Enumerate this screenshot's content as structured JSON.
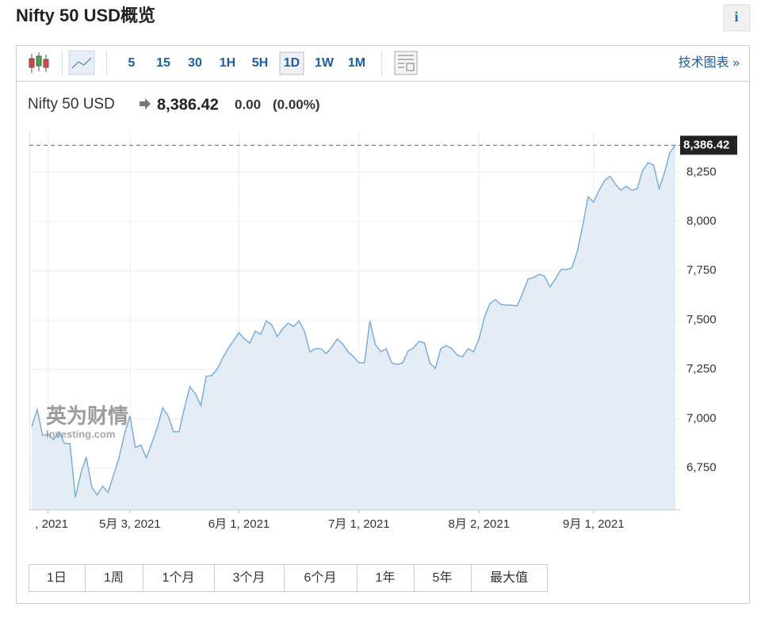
{
  "header": {
    "title": "Nifty 50 USD概览",
    "info": "i"
  },
  "toolbar": {
    "intervals": [
      "5",
      "15",
      "30",
      "1H",
      "5H",
      "1D",
      "1W",
      "1M"
    ],
    "selected": "1D",
    "link": "技术图表 »"
  },
  "quote": {
    "name": "Nifty 50 USD",
    "price": "8,386.42",
    "change": "0.00",
    "change_pct": "(0.00%)"
  },
  "watermark": {
    "brand": "英为财情",
    "site": "Investing.com"
  },
  "chart_data": {
    "type": "area",
    "color": "#7aaedb",
    "fill": "#e4edf6",
    "grid": true,
    "categories": [
      null,
      null,
      null,
      ", 2021",
      null,
      null,
      null,
      null,
      null,
      null,
      null,
      null,
      null,
      null,
      null,
      null,
      null,
      null,
      "5月 3, 2021",
      null,
      null,
      null,
      null,
      null,
      null,
      null,
      null,
      null,
      null,
      null,
      null,
      null,
      null,
      null,
      null,
      null,
      null,
      null,
      "6月 1, 2021",
      null,
      null,
      null,
      null,
      null,
      null,
      null,
      null,
      null,
      null,
      null,
      null,
      null,
      null,
      null,
      null,
      null,
      null,
      null,
      null,
      null,
      "7月 1, 2021",
      null,
      null,
      null,
      null,
      null,
      null,
      null,
      null,
      null,
      null,
      null,
      null,
      null,
      null,
      null,
      null,
      null,
      null,
      null,
      null,
      null,
      "8月 2, 2021",
      null,
      null,
      null,
      null,
      null,
      null,
      null,
      null,
      null,
      null,
      null,
      null,
      null,
      null,
      null,
      null,
      null,
      null,
      null,
      null,
      "9月 1, 2021",
      null,
      null,
      null,
      null,
      null,
      null,
      null,
      null,
      null,
      null,
      null,
      null,
      null,
      null,
      null
    ],
    "values": [
      6960,
      7047,
      6914,
      6922,
      6894,
      6934,
      6874,
      6874,
      6602,
      6722,
      6806,
      6654,
      6614,
      6658,
      6626,
      6714,
      6802,
      6922,
      7015,
      6854,
      6866,
      6802,
      6874,
      6954,
      7055,
      7015,
      6934,
      6934,
      7055,
      7163,
      7127,
      7067,
      7215,
      7219,
      7251,
      7307,
      7355,
      7396,
      7436,
      7404,
      7384,
      7444,
      7428,
      7496,
      7476,
      7416,
      7456,
      7484,
      7468,
      7496,
      7444,
      7339,
      7355,
      7355,
      7331,
      7363,
      7404,
      7380,
      7339,
      7315,
      7283,
      7283,
      7496,
      7376,
      7339,
      7355,
      7283,
      7275,
      7283,
      7343,
      7359,
      7392,
      7384,
      7283,
      7255,
      7355,
      7371,
      7355,
      7323,
      7315,
      7355,
      7339,
      7404,
      7516,
      7584,
      7604,
      7580,
      7576,
      7576,
      7572,
      7636,
      7708,
      7716,
      7732,
      7724,
      7668,
      7708,
      7756,
      7756,
      7764,
      7845,
      7977,
      8126,
      8098,
      8158,
      8206,
      8230,
      8190,
      8158,
      8178,
      8158,
      8166,
      8258,
      8298,
      8286,
      8166,
      8246,
      8350,
      8386.42
    ],
    "ylim": [
      6540,
      8460
    ],
    "yticks": [
      {
        "value": 6750,
        "label": "6,750"
      },
      {
        "value": 7000,
        "label": "7,000"
      },
      {
        "value": 7250,
        "label": "7,250"
      },
      {
        "value": 7500,
        "label": "7,500"
      },
      {
        "value": 7750,
        "label": "7,750"
      },
      {
        "value": 8000,
        "label": "8,000"
      },
      {
        "value": 8250,
        "label": "8,250"
      }
    ],
    "last_label": {
      "value": 8386.42,
      "label": "8,386.42"
    }
  },
  "ranges": [
    "1日",
    "1周",
    "1个月",
    "3个月",
    "6个月",
    "1年",
    "5年",
    "最大值"
  ]
}
